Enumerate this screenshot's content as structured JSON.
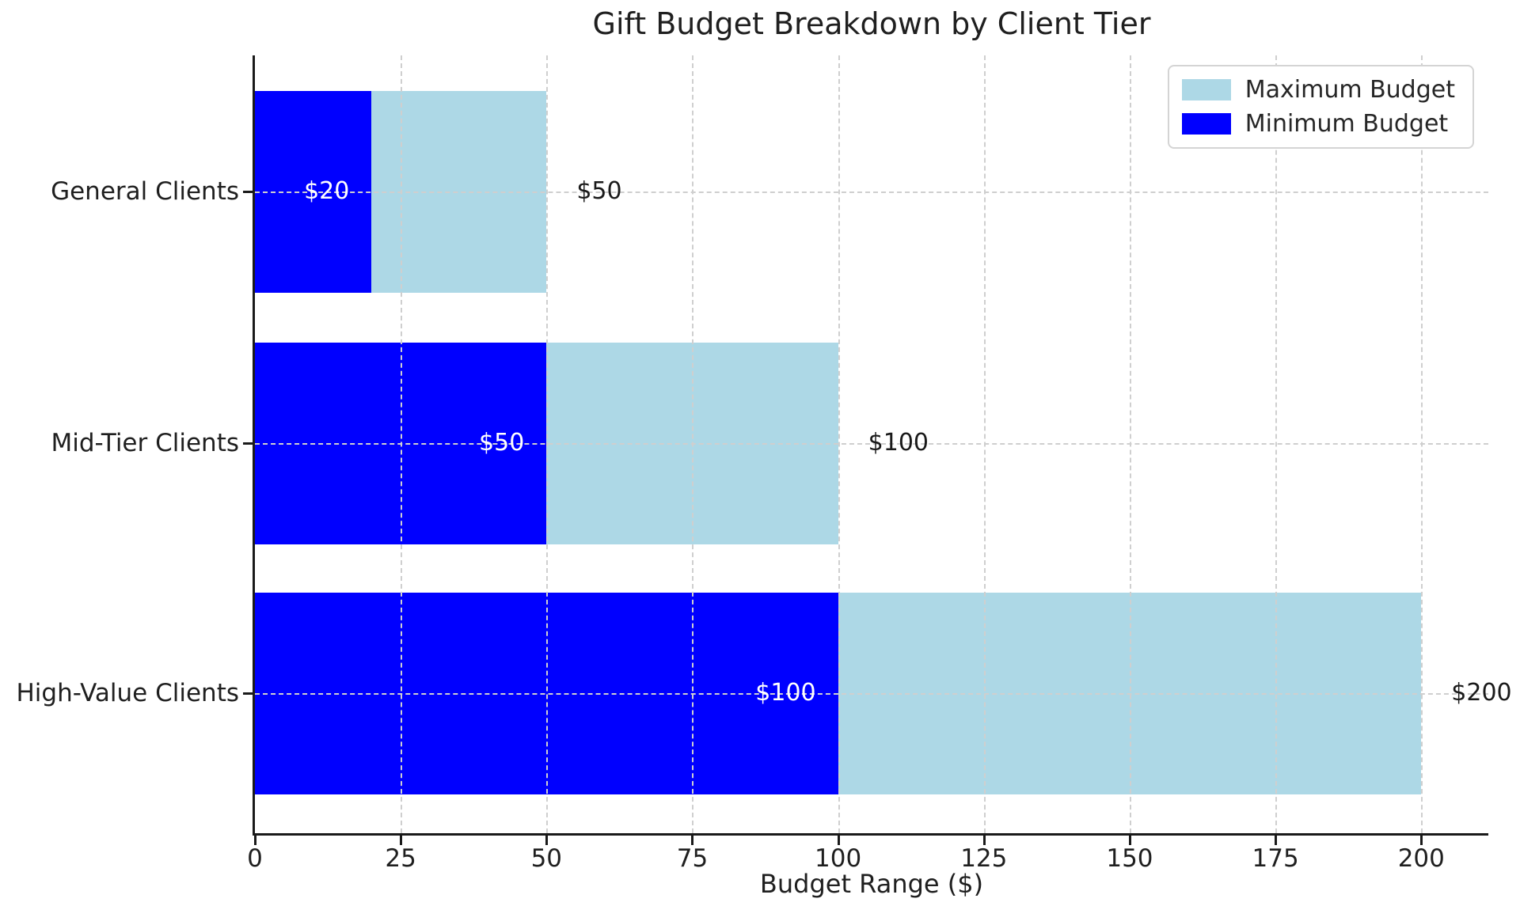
{
  "chart_data": {
    "type": "bar",
    "orientation": "horizontal",
    "title": "Gift Budget Breakdown by Client Tier",
    "xlabel": "Budget Range ($)",
    "categories": [
      "General Clients",
      "Mid-Tier Clients",
      "High-Value Clients"
    ],
    "series": [
      {
        "name": "Maximum Budget",
        "color": "#add8e6",
        "values": [
          50,
          100,
          200
        ],
        "data_labels": [
          "$50",
          "$100",
          "$200"
        ],
        "label_placement": "outside-right",
        "label_color": "#1a1a1a"
      },
      {
        "name": "Minimum Budget",
        "color": "#0000ff",
        "values": [
          20,
          50,
          100
        ],
        "data_labels": [
          "$20",
          "$50",
          "$100"
        ],
        "label_placement": "inside-right",
        "label_color": "#ffffff"
      }
    ],
    "xlim": [
      0,
      211.5
    ],
    "xticks": [
      0,
      25,
      50,
      75,
      100,
      125,
      150,
      175,
      200
    ],
    "grid": "both-dashed",
    "legend_position": "upper-right",
    "legend": [
      {
        "label": "Maximum Budget",
        "color": "#add8e6"
      },
      {
        "label": "Minimum Budget",
        "color": "#0000ff"
      }
    ],
    "colors": {
      "grid": "#cfcfcf",
      "spine": "#1a1a1a",
      "text": "#1f1f1f",
      "background": "#ffffff"
    }
  }
}
